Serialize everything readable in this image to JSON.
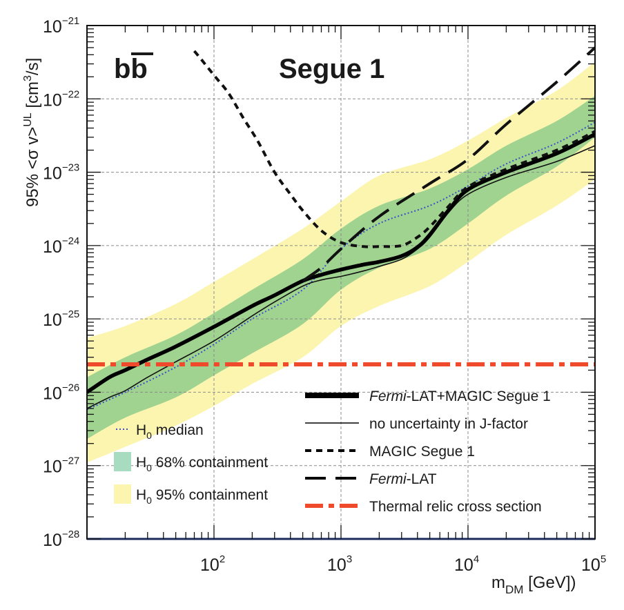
{
  "chart_data": {
    "type": "line",
    "title_left": "bb",
    "title_right": "Segue 1",
    "xlabel": "m_DM [GeV])",
    "xlabel_main": "m",
    "xlabel_sub": "DM",
    "xlabel_tail": " [GeV])",
    "ylabel": "95% <σ v>^UL [cm^3/s]",
    "ylabel_main": "95% <σ v>",
    "ylabel_sup": "UL",
    "ylabel_mid": " [cm",
    "ylabel_sup2": "3",
    "ylabel_tail": "/s]",
    "x_scale": "log",
    "y_scale": "log",
    "xlim": [
      10,
      100000
    ],
    "ylim": [
      1e-28,
      1e-21
    ],
    "grid": true,
    "x_ticks": [
      {
        "value": 100,
        "base": "10",
        "exp": "2"
      },
      {
        "value": 1000,
        "base": "10",
        "exp": "3"
      },
      {
        "value": 10000,
        "base": "10",
        "exp": "4"
      },
      {
        "value": 100000,
        "base": "10",
        "exp": "5"
      }
    ],
    "y_ticks": [
      {
        "value": 1e-28,
        "base": "10",
        "exp": "−28"
      },
      {
        "value": 1e-27,
        "base": "10",
        "exp": "−27"
      },
      {
        "value": 1e-26,
        "base": "10",
        "exp": "−26"
      },
      {
        "value": 1e-25,
        "base": "10",
        "exp": "−25"
      },
      {
        "value": 1e-24,
        "base": "10",
        "exp": "−24"
      },
      {
        "value": 1e-23,
        "base": "10",
        "exp": "−23"
      },
      {
        "value": 1e-22,
        "base": "10",
        "exp": "−22"
      },
      {
        "value": 1e-21,
        "base": "10",
        "exp": "−21"
      }
    ],
    "bands": [
      {
        "name": "H0 95% containment",
        "color": "#fbf5b0",
        "x": [
          10,
          20,
          50,
          100,
          200,
          500,
          1000,
          2000,
          5000,
          10000,
          20000,
          50000,
          100000
        ],
        "upper": [
          5.5e-26,
          8e-26,
          1.6e-25,
          3.2e-25,
          6.5e-25,
          1.7e-24,
          4e-24,
          9e-24,
          1.5e-23,
          2.7e-23,
          5.5e-23,
          1.3e-22,
          3.2e-22
        ],
        "lower": [
          1.1e-27,
          1.8e-27,
          3.5e-27,
          6.5e-27,
          1.3e-26,
          3e-26,
          8e-26,
          1.5e-25,
          2.8e-25,
          6e-25,
          1.4e-24,
          3.5e-24,
          8e-24
        ]
      },
      {
        "name": "H0 68% containment",
        "color": "#9fd38f",
        "x": [
          10,
          20,
          50,
          100,
          200,
          500,
          1000,
          2000,
          5000,
          10000,
          20000,
          50000,
          100000
        ],
        "upper": [
          1.6e-26,
          3e-26,
          6e-26,
          1.2e-25,
          2.5e-25,
          6.5e-25,
          1.7e-24,
          3.5e-24,
          6e-24,
          1.1e-23,
          2.3e-23,
          5e-23,
          1.1e-22
        ],
        "lower": [
          2.3e-27,
          4.5e-27,
          8.5e-27,
          1.7e-26,
          3.4e-26,
          8.5e-26,
          2.5e-25,
          5e-25,
          9e-25,
          2e-24,
          4.8e-24,
          1.2e-23,
          3e-23
        ]
      }
    ],
    "series": [
      {
        "name": "H0 median",
        "style": "dotted",
        "color": "#3a4fc8",
        "width": 2,
        "x": [
          10,
          20,
          50,
          100,
          200,
          500,
          1000,
          2000,
          5000,
          10000,
          20000,
          50000,
          100000
        ],
        "y": [
          5.8e-27,
          1e-26,
          2.2e-26,
          4.5e-26,
          1e-25,
          2.5e-25,
          9e-25,
          2e-24,
          3.5e-24,
          6.5e-24,
          1.3e-23,
          2.5e-23,
          4.8e-23
        ]
      },
      {
        "name": "no uncertainty in J-factor",
        "style": "solid",
        "color": "#111111",
        "width": 1.6,
        "x": [
          10,
          15,
          20,
          30,
          50,
          100,
          200,
          300,
          500,
          700,
          1000,
          1500,
          2000,
          3000,
          4000,
          5000,
          7000,
          10000,
          20000,
          50000,
          100000
        ],
        "y": [
          6e-27,
          8.5e-27,
          1.05e-26,
          1.6e-26,
          2.6e-26,
          5e-26,
          1.1e-25,
          1.7e-25,
          2.8e-25,
          3.4e-25,
          3.8e-25,
          4.5e-25,
          5.2e-25,
          6.5e-25,
          9e-25,
          1.3e-24,
          2.8e-24,
          5e-24,
          8.5e-24,
          1.4e-23,
          2.3e-23
        ]
      },
      {
        "name": "Fermi-LAT+MAGIC Segue 1",
        "style": "solid",
        "color": "#000000",
        "width": 5.5,
        "x": [
          10,
          15,
          20,
          30,
          50,
          100,
          200,
          300,
          500,
          700,
          1000,
          1500,
          2000,
          3000,
          4000,
          5000,
          7000,
          10000,
          20000,
          50000,
          100000
        ],
        "y": [
          1e-26,
          1.6e-26,
          2e-26,
          2.8e-26,
          4.2e-26,
          7.8e-26,
          1.5e-25,
          2.1e-25,
          3.3e-25,
          4e-25,
          4.7e-25,
          5.5e-25,
          6e-25,
          7.2e-25,
          9.5e-25,
          1.4e-24,
          3e-24,
          5.8e-24,
          1e-23,
          1.8e-23,
          3.3e-23
        ]
      },
      {
        "name": "MAGIC Segue 1",
        "style": "dashed-short",
        "color": "#111111",
        "width": 4,
        "x": [
          70,
          80,
          100,
          130,
          170,
          220,
          300,
          400,
          500,
          700,
          1000,
          1500,
          2000,
          3000,
          4000,
          5000,
          7000,
          10000,
          20000,
          50000,
          100000
        ],
        "y": [
          4.5e-22,
          3.4e-22,
          2.1e-22,
          1.2e-22,
          5.5e-23,
          2.7e-23,
          1e-23,
          5e-24,
          3e-24,
          1.6e-24,
          1.1e-24,
          9.7e-25,
          9.7e-25,
          1e-24,
          1.3e-24,
          1.8e-24,
          3.4e-24,
          6.3e-24,
          1.1e-23,
          2e-23,
          3.6e-23
        ]
      },
      {
        "name": "Fermi-LAT",
        "style": "dashed-long",
        "color": "#111111",
        "width": 4,
        "x": [
          500,
          700,
          1000,
          2000,
          5000,
          10000,
          20000,
          50000,
          100000
        ],
        "y": [
          3.3e-25,
          5e-25,
          9e-25,
          2.5e-24,
          7e-24,
          1.5e-23,
          4.5e-23,
          1.7e-22,
          5e-22
        ]
      },
      {
        "name": "Thermal relic cross section",
        "style": "dashdot",
        "color": "#f04a2c",
        "width": 6,
        "x": [
          10,
          100000
        ],
        "y": [
          2.4e-26,
          2.4e-26
        ]
      }
    ],
    "legend_right": [
      {
        "name_italic": "Fermi",
        "name_rest": "-LAT+MAGIC Segue 1",
        "style": "thick"
      },
      {
        "name_italic": "",
        "name_rest": "no uncertainty in J-factor",
        "style": "thin"
      },
      {
        "name_italic": "",
        "name_rest": "MAGIC Segue 1",
        "style": "dashed-short"
      },
      {
        "name_italic": "Fermi",
        "name_rest": "-LAT",
        "style": "dashed-long"
      },
      {
        "name_italic": "",
        "name_rest": "Thermal relic cross section",
        "style": "dashdot"
      }
    ],
    "legend_left": [
      {
        "base": "H",
        "sub": "0",
        "rest": " median",
        "style": "dotted"
      },
      {
        "base": "H",
        "sub": "0",
        "rest": " 68% containment",
        "style": "box68"
      },
      {
        "base": "H",
        "sub": "0",
        "rest": " 95% containment",
        "style": "box95"
      }
    ],
    "legend_placement_right": "bottom-right",
    "legend_placement_left": "bottom-left"
  }
}
